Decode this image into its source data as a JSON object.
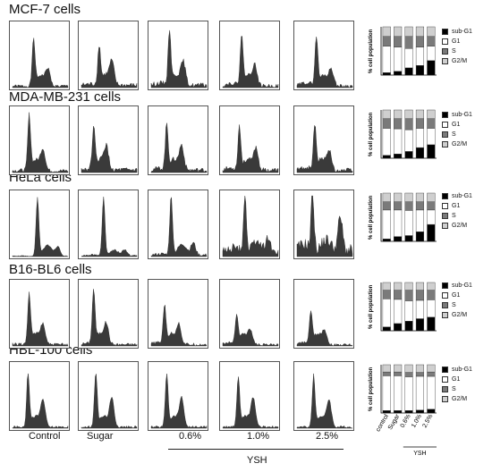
{
  "rows": [
    {
      "title": "MCF-7 cells"
    },
    {
      "title": "MDA-MB-231 cells"
    },
    {
      "title": "HeLa cells"
    },
    {
      "title": "B16-BL6 cells"
    },
    {
      "title": "HBL-100 cells"
    }
  ],
  "bottom_labels": {
    "control": "Control",
    "sugar": "Sugar",
    "c1": "0.6%",
    "c2": "1.0%",
    "c3": "2.5%",
    "group": "YSH"
  },
  "legend": [
    {
      "label": "sub-G1",
      "color": "#000000"
    },
    {
      "label": "G1",
      "color": "#ffffff"
    },
    {
      "label": "S",
      "color": "#7a7a7a"
    },
    {
      "label": "G2/M",
      "color": "#cfcfcf"
    }
  ],
  "stack_xticks": [
    "control",
    "Sugar",
    "0.6%",
    "1.0%",
    "2.5%"
  ],
  "stack_group": "YSH",
  "chart_data": [
    {
      "type": "bar",
      "stacked": true,
      "ylabel": "% cell population",
      "categories": [
        "control",
        "Sugar",
        "0.6%",
        "1.0%",
        "2.5%"
      ],
      "series": [
        {
          "name": "sub-G1",
          "values": [
            5,
            8,
            15,
            20,
            30
          ]
        },
        {
          "name": "G1",
          "values": [
            55,
            50,
            40,
            38,
            30
          ]
        },
        {
          "name": "S",
          "values": [
            20,
            22,
            25,
            22,
            20
          ]
        },
        {
          "name": "G2/M",
          "values": [
            20,
            20,
            20,
            20,
            20
          ]
        }
      ]
    },
    {
      "type": "bar",
      "stacked": true,
      "ylabel": "% cell population",
      "categories": [
        "control",
        "Sugar",
        "0.6%",
        "1.0%",
        "2.5%"
      ],
      "series": [
        {
          "name": "sub-G1",
          "values": [
            6,
            9,
            14,
            22,
            28
          ]
        },
        {
          "name": "G1",
          "values": [
            56,
            52,
            45,
            40,
            34
          ]
        },
        {
          "name": "S",
          "values": [
            20,
            21,
            23,
            20,
            20
          ]
        },
        {
          "name": "G2/M",
          "values": [
            18,
            18,
            18,
            18,
            18
          ]
        }
      ]
    },
    {
      "type": "bar",
      "stacked": true,
      "ylabel": "% cell population",
      "categories": [
        "control",
        "Sugar",
        "0.6%",
        "1.0%",
        "2.5%"
      ],
      "series": [
        {
          "name": "sub-G1",
          "values": [
            5,
            10,
            12,
            20,
            35
          ]
        },
        {
          "name": "G1",
          "values": [
            60,
            55,
            52,
            45,
            30
          ]
        },
        {
          "name": "S",
          "values": [
            17,
            17,
            18,
            17,
            17
          ]
        },
        {
          "name": "G2/M",
          "values": [
            18,
            18,
            18,
            18,
            18
          ]
        }
      ]
    },
    {
      "type": "bar",
      "stacked": true,
      "ylabel": "% cell population",
      "categories": [
        "control",
        "Sugar",
        "0.6%",
        "1.0%",
        "2.5%"
      ],
      "series": [
        {
          "name": "sub-G1",
          "values": [
            8,
            15,
            20,
            25,
            28
          ]
        },
        {
          "name": "G1",
          "values": [
            58,
            50,
            42,
            38,
            36
          ]
        },
        {
          "name": "S",
          "values": [
            18,
            19,
            22,
            21,
            20
          ]
        },
        {
          "name": "G2/M",
          "values": [
            16,
            16,
            16,
            16,
            16
          ]
        }
      ]
    },
    {
      "type": "bar",
      "stacked": true,
      "ylabel": "% cell population",
      "categories": [
        "control",
        "Sugar",
        "0.6%",
        "1.0%",
        "2.5%"
      ],
      "series": [
        {
          "name": "sub-G1",
          "values": [
            5,
            5,
            5,
            6,
            8
          ]
        },
        {
          "name": "G1",
          "values": [
            72,
            72,
            70,
            70,
            68
          ]
        },
        {
          "name": "S",
          "values": [
            8,
            8,
            9,
            8,
            9
          ]
        },
        {
          "name": "G2/M",
          "values": [
            15,
            15,
            16,
            16,
            15
          ]
        }
      ]
    }
  ]
}
